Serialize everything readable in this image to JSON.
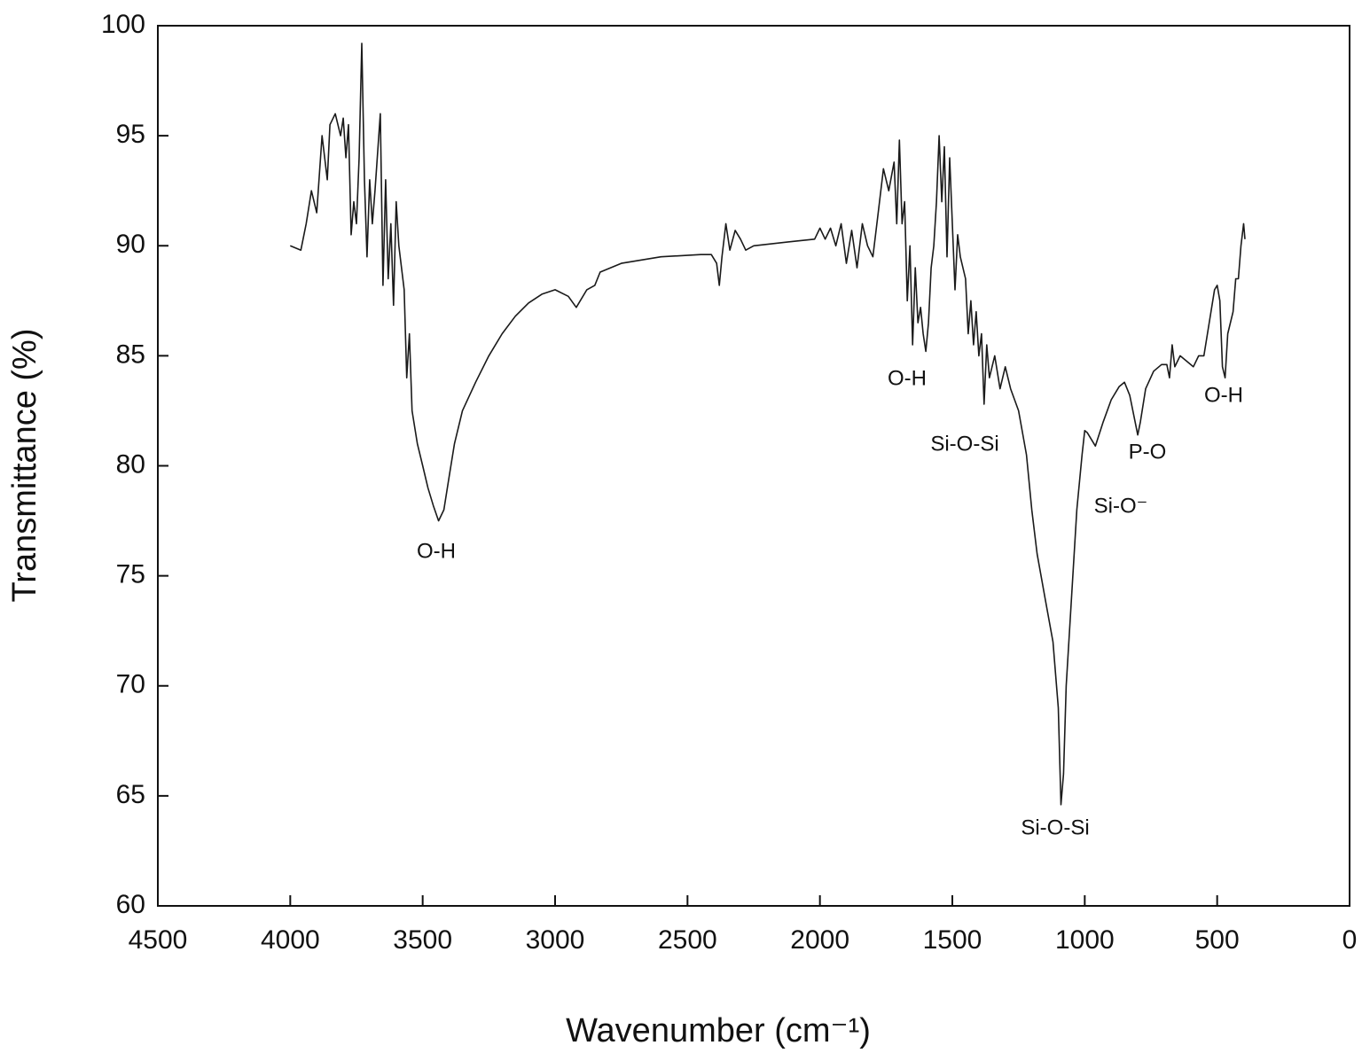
{
  "chart_data": {
    "type": "line",
    "xlabel": "Wavenumber (cm⁻¹)",
    "ylabel": "Transmittance (%)",
    "color": "#1a1a1a",
    "xlim": [
      4500,
      0
    ],
    "xticks": [
      4500,
      4000,
      3500,
      3000,
      2500,
      2000,
      1500,
      1000,
      500,
      0
    ],
    "ylim": [
      60,
      100
    ],
    "yticks": [
      60,
      65,
      70,
      75,
      80,
      85,
      90,
      95,
      100
    ],
    "annotations": [
      "O-H",
      "O-H",
      "Si-O-Si",
      "Si-O-Si",
      "Si-O⁻",
      "P-O",
      "O-H"
    ],
    "x": [
      4000,
      3960,
      3940,
      3920,
      3900,
      3880,
      3860,
      3850,
      3830,
      3810,
      3800,
      3790,
      3780,
      3770,
      3760,
      3750,
      3740,
      3730,
      3720,
      3710,
      3700,
      3690,
      3680,
      3660,
      3650,
      3640,
      3630,
      3620,
      3610,
      3600,
      3590,
      3570,
      3560,
      3550,
      3540,
      3520,
      3510,
      3500,
      3480,
      3460,
      3440,
      3420,
      3400,
      3380,
      3350,
      3300,
      3250,
      3200,
      3150,
      3100,
      3050,
      3000,
      2950,
      2920,
      2880,
      2850,
      2830,
      2750,
      2600,
      2450,
      2410,
      2390,
      2380,
      2370,
      2355,
      2340,
      2320,
      2300,
      2280,
      2250,
      2100,
      2020,
      2000,
      1980,
      1960,
      1940,
      1920,
      1900,
      1880,
      1860,
      1840,
      1820,
      1800,
      1780,
      1760,
      1740,
      1720,
      1710,
      1700,
      1690,
      1680,
      1670,
      1660,
      1650,
      1640,
      1630,
      1620,
      1610,
      1600,
      1590,
      1580,
      1570,
      1560,
      1550,
      1540,
      1530,
      1520,
      1510,
      1500,
      1490,
      1480,
      1470,
      1450,
      1440,
      1430,
      1420,
      1410,
      1400,
      1390,
      1380,
      1370,
      1360,
      1340,
      1320,
      1300,
      1280,
      1250,
      1220,
      1200,
      1180,
      1150,
      1120,
      1100,
      1090,
      1080,
      1070,
      1050,
      1030,
      1010,
      1000,
      990,
      960,
      930,
      900,
      870,
      850,
      830,
      810,
      800,
      790,
      770,
      740,
      710,
      690,
      680,
      670,
      660,
      640,
      620,
      600,
      590,
      570,
      550,
      530,
      510,
      500,
      490,
      480,
      470,
      460,
      440,
      430,
      420,
      410,
      400,
      395
    ],
    "values": [
      90.0,
      89.8,
      91,
      92.5,
      91.5,
      95,
      93,
      95.5,
      96,
      95,
      95.8,
      94,
      95.5,
      90.5,
      92,
      91,
      94,
      99.2,
      93,
      89.5,
      93,
      91,
      92.5,
      96,
      88.2,
      93,
      88.5,
      91,
      87.3,
      92,
      90,
      88,
      84,
      86,
      82.5,
      81,
      80.5,
      80,
      79,
      78.2,
      77.5,
      78,
      79.5,
      81,
      82.5,
      83.8,
      85,
      86,
      86.8,
      87.4,
      87.8,
      88,
      87.7,
      87.2,
      88,
      88.2,
      88.8,
      89.2,
      89.5,
      89.6,
      89.6,
      89.2,
      88.2,
      89.5,
      91,
      89.8,
      90.7,
      90.3,
      89.8,
      90,
      90.2,
      90.3,
      90.8,
      90.3,
      90.8,
      90,
      91,
      89.2,
      90.7,
      89,
      91,
      90,
      89.5,
      91.5,
      93.5,
      92.5,
      93.8,
      91,
      94.8,
      91,
      92,
      87.5,
      90,
      85.5,
      89,
      86.5,
      87.2,
      86,
      85.2,
      86.5,
      89,
      90,
      92,
      95,
      92,
      94.5,
      89.5,
      94,
      91,
      88,
      90.5,
      89.5,
      88.5,
      86,
      87.5,
      85.5,
      87,
      85,
      86,
      82.8,
      85.5,
      84,
      85,
      83.5,
      84.5,
      83.5,
      82.5,
      80.5,
      78,
      76,
      74,
      72,
      69,
      64.6,
      66,
      70,
      74,
      78,
      80.5,
      81.6,
      81.5,
      80.9,
      82,
      83,
      83.6,
      83.8,
      83.2,
      82,
      81.4,
      82,
      83.5,
      84.3,
      84.6,
      84.6,
      84,
      85.5,
      84.5,
      85,
      84.8,
      84.6,
      84.5,
      85,
      85,
      86.5,
      88,
      88.2,
      87.5,
      84.5,
      84,
      86,
      87,
      88.5,
      88.5,
      90,
      91,
      90.3
    ]
  }
}
